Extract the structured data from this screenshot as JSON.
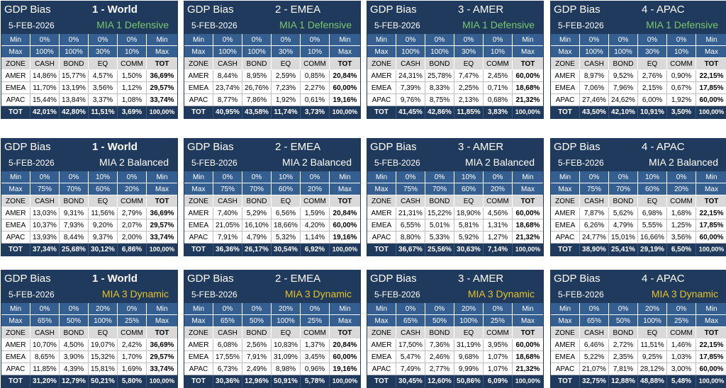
{
  "colors": {
    "navy": "#1f3a5c",
    "limits": "#365f91",
    "green": "#7bc86c",
    "gold": "#e6c229"
  },
  "panels": [
    {
      "bias": "GDP Bias",
      "region": "1 - World",
      "date": "5-FEB-2026",
      "profile": "MIA 1 Defensive",
      "profile_color": "#7bc86c",
      "min": [
        "Min",
        "0%",
        "0%",
        "0%",
        "0%",
        "Min"
      ],
      "max": [
        "Max",
        "100%",
        "100%",
        "30%",
        "10%",
        "Max"
      ],
      "headers": [
        "ZONE",
        "CASH",
        "BOND",
        "EQ",
        "COMM",
        "TOT"
      ],
      "rows": [
        [
          "AMER",
          "14,86%",
          "15,77%",
          "4,57%",
          "1,50%",
          "36,69%"
        ],
        [
          "EMEA",
          "11,70%",
          "13,19%",
          "3,56%",
          "1,12%",
          "29,57%"
        ],
        [
          "APAC",
          "15,44%",
          "13,84%",
          "3,37%",
          "1,08%",
          "33,74%"
        ]
      ],
      "totals": [
        "TOT",
        "42,01%",
        "42,80%",
        "11,51%",
        "3,69%",
        "100,00%"
      ]
    },
    {
      "bias": "GDP Bias",
      "region": "2 - EMEA",
      "date": "5-FEB-2026",
      "profile": "MIA 1 Defensive",
      "profile_color": "#7bc86c",
      "min": [
        "Min",
        "0%",
        "0%",
        "0%",
        "0%",
        "Min"
      ],
      "max": [
        "Max",
        "100%",
        "100%",
        "30%",
        "10%",
        "Max"
      ],
      "headers": [
        "ZONE",
        "CASH",
        "BOND",
        "EQ",
        "COMM",
        "TOT"
      ],
      "rows": [
        [
          "AMER",
          "8,44%",
          "8,95%",
          "2,59%",
          "0,85%",
          "20,84%"
        ],
        [
          "EMEA",
          "23,74%",
          "26,76%",
          "7,23%",
          "2,27%",
          "60,00%"
        ],
        [
          "APAC",
          "8,77%",
          "7,86%",
          "1,92%",
          "0,61%",
          "19,16%"
        ]
      ],
      "totals": [
        "TOT",
        "40,95%",
        "43,58%",
        "11,74%",
        "3,73%",
        "100,00%"
      ]
    },
    {
      "bias": "GDP Bias",
      "region": "3 - AMER",
      "date": "5-FEB-2026",
      "profile": "MIA 1 Defensive",
      "profile_color": "#7bc86c",
      "min": [
        "Min",
        "0%",
        "0%",
        "0%",
        "0%",
        "Min"
      ],
      "max": [
        "Max",
        "100%",
        "100%",
        "30%",
        "10%",
        "Max"
      ],
      "headers": [
        "ZONE",
        "CASH",
        "BOND",
        "EQ",
        "COMM",
        "TOT"
      ],
      "rows": [
        [
          "AMER",
          "24,31%",
          "25,78%",
          "7,47%",
          "2,45%",
          "60,00%"
        ],
        [
          "EMEA",
          "7,39%",
          "8,33%",
          "2,25%",
          "0,71%",
          "18,68%"
        ],
        [
          "APAC",
          "9,76%",
          "8,75%",
          "2,13%",
          "0,68%",
          "21,32%"
        ]
      ],
      "totals": [
        "TOT",
        "41,45%",
        "42,86%",
        "11,85%",
        "3,83%",
        "100,00%"
      ]
    },
    {
      "bias": "GDP Bias",
      "region": "4 - APAC",
      "date": "5-FEB-2026",
      "profile": "MIA 1 Defensive",
      "profile_color": "#7bc86c",
      "min": [
        "Min",
        "0%",
        "0%",
        "0%",
        "0%",
        "Min"
      ],
      "max": [
        "Max",
        "100%",
        "100%",
        "30%",
        "10%",
        "Max"
      ],
      "headers": [
        "ZONE",
        "CASH",
        "BOND",
        "EQ",
        "COMM",
        "TOT"
      ],
      "rows": [
        [
          "AMER",
          "8,97%",
          "9,52%",
          "2,76%",
          "0,90%",
          "22,15%"
        ],
        [
          "EMEA",
          "7,06%",
          "7,96%",
          "2,15%",
          "0,67%",
          "17,85%"
        ],
        [
          "APAC",
          "27,46%",
          "24,62%",
          "6,00%",
          "1,92%",
          "60,00%"
        ]
      ],
      "totals": [
        "TOT",
        "43,50%",
        "42,10%",
        "10,91%",
        "3,50%",
        "100,00%"
      ]
    },
    {
      "bias": "GDP Bias",
      "region": "1 - World",
      "date": "5-FEB-2026",
      "profile": "MIA 2 Balanced",
      "profile_color": "#ffffff",
      "min": [
        "Min",
        "0%",
        "0%",
        "10%",
        "0%",
        "Min"
      ],
      "max": [
        "Max",
        "75%",
        "70%",
        "60%",
        "20%",
        "Max"
      ],
      "headers": [
        "ZONE",
        "CASH",
        "BOND",
        "EQ",
        "COMM",
        "TOT"
      ],
      "rows": [
        [
          "AMER",
          "13,03%",
          "9,31%",
          "11,56%",
          "2,79%",
          "36,69%"
        ],
        [
          "EMEA",
          "10,37%",
          "7,93%",
          "9,20%",
          "2,07%",
          "29,57%"
        ],
        [
          "APAC",
          "13,93%",
          "8,44%",
          "9,37%",
          "2,00%",
          "33,74%"
        ]
      ],
      "totals": [
        "TOT",
        "37,34%",
        "25,68%",
        "30,12%",
        "6,86%",
        "100,00%"
      ]
    },
    {
      "bias": "GDP Bias",
      "region": "2 - EMEA",
      "date": "5-FEB-2026",
      "profile": "MIA 2 Balanced",
      "profile_color": "#ffffff",
      "min": [
        "Min",
        "0%",
        "0%",
        "10%",
        "0%",
        "Min"
      ],
      "max": [
        "Max",
        "75%",
        "70%",
        "60%",
        "20%",
        "Max"
      ],
      "headers": [
        "ZONE",
        "CASH",
        "BOND",
        "EQ",
        "COMM",
        "TOT"
      ],
      "rows": [
        [
          "AMER",
          "7,40%",
          "5,29%",
          "6,56%",
          "1,59%",
          "20,84%"
        ],
        [
          "EMEA",
          "21,05%",
          "16,10%",
          "18,66%",
          "4,20%",
          "60,00%"
        ],
        [
          "APAC",
          "7,91%",
          "4,79%",
          "5,32%",
          "1,14%",
          "19,16%"
        ]
      ],
      "totals": [
        "TOT",
        "36,36%",
        "26,17%",
        "30,54%",
        "6,92%",
        "100,00%"
      ]
    },
    {
      "bias": "GDP Bias",
      "region": "3 - AMER",
      "date": "5-FEB-2026",
      "profile": "MIA 2 Balanced",
      "profile_color": "#ffffff",
      "min": [
        "Min",
        "0%",
        "0%",
        "10%",
        "0%",
        "Min"
      ],
      "max": [
        "Max",
        "75%",
        "70%",
        "60%",
        "20%",
        "Max"
      ],
      "headers": [
        "ZONE",
        "CASH",
        "BOND",
        "EQ",
        "COMM",
        "TOT"
      ],
      "rows": [
        [
          "AMER",
          "21,31%",
          "15,22%",
          "18,90%",
          "4,56%",
          "60,00%"
        ],
        [
          "EMEA",
          "6,55%",
          "5,01%",
          "5,81%",
          "1,31%",
          "18,68%"
        ],
        [
          "APAC",
          "8,80%",
          "5,33%",
          "5,92%",
          "1,27%",
          "21,32%"
        ]
      ],
      "totals": [
        "TOT",
        "36,67%",
        "25,56%",
        "30,63%",
        "7,14%",
        "100,00%"
      ]
    },
    {
      "bias": "GDP Bias",
      "region": "4 - APAC",
      "date": "5-FEB-2026",
      "profile": "MIA 2 Balanced",
      "profile_color": "#ffffff",
      "min": [
        "Min",
        "0%",
        "0%",
        "10%",
        "0%",
        "Min"
      ],
      "max": [
        "Max",
        "75%",
        "70%",
        "60%",
        "20%",
        "Max"
      ],
      "headers": [
        "ZONE",
        "CASH",
        "BOND",
        "EQ",
        "COMM",
        "TOT"
      ],
      "rows": [
        [
          "AMER",
          "7,87%",
          "5,62%",
          "6,98%",
          "1,68%",
          "22,15%"
        ],
        [
          "EMEA",
          "6,26%",
          "4,79%",
          "5,55%",
          "1,25%",
          "17,85%"
        ],
        [
          "APAC",
          "24,77%",
          "15,01%",
          "16,66%",
          "3,56%",
          "60,00%"
        ]
      ],
      "totals": [
        "TOT",
        "38,90%",
        "25,41%",
        "29,19%",
        "6,50%",
        "100,00%"
      ]
    },
    {
      "bias": "GDP Bias",
      "region": "1 - World",
      "date": "5-FEB-2026",
      "profile": "MIA 3 Dynamic",
      "profile_color": "#e6c229",
      "min": [
        "Min",
        "0%",
        "0%",
        "20%",
        "0%",
        "Min"
      ],
      "max": [
        "Max",
        "65%",
        "50%",
        "100%",
        "25%",
        "Max"
      ],
      "headers": [
        "ZONE",
        "CASH",
        "BOND",
        "EQ",
        "COMM",
        "TOT"
      ],
      "rows": [
        [
          "AMER",
          "10,70%",
          "4,50%",
          "19,07%",
          "2,42%",
          "36,69%"
        ],
        [
          "EMEA",
          "8,65%",
          "3,90%",
          "15,32%",
          "1,70%",
          "29,57%"
        ],
        [
          "APAC",
          "11,85%",
          "4,39%",
          "15,81%",
          "1,69%",
          "33,74%"
        ]
      ],
      "totals": [
        "TOT",
        "31,20%",
        "12,79%",
        "50,21%",
        "5,80%",
        "100,00%"
      ]
    },
    {
      "bias": "GDP Bias",
      "region": "2 - EMEA",
      "date": "5-FEB-2026",
      "profile": "MIA 3 Dynamic",
      "profile_color": "#e6c229",
      "min": [
        "Min",
        "0%",
        "0%",
        "20%",
        "0%",
        "Min"
      ],
      "max": [
        "Max",
        "65%",
        "50%",
        "100%",
        "25%",
        "Max"
      ],
      "headers": [
        "ZONE",
        "CASH",
        "BOND",
        "EQ",
        "COMM",
        "TOT"
      ],
      "rows": [
        [
          "AMER",
          "6,08%",
          "2,56%",
          "10,83%",
          "1,37%",
          "20,84%"
        ],
        [
          "EMEA",
          "17,55%",
          "7,91%",
          "31,09%",
          "3,45%",
          "60,00%"
        ],
        [
          "APAC",
          "6,73%",
          "2,49%",
          "8,98%",
          "0,96%",
          "19,16%"
        ]
      ],
      "totals": [
        "TOT",
        "30,36%",
        "12,96%",
        "50,91%",
        "5,78%",
        "100,00%"
      ]
    },
    {
      "bias": "GDP Bias",
      "region": "3 - AMER",
      "date": "5-FEB-2026",
      "profile": "MIA 3 Dynamic",
      "profile_color": "#e6c229",
      "min": [
        "Min",
        "0%",
        "0%",
        "20%",
        "0%",
        "Min"
      ],
      "max": [
        "Max",
        "65%",
        "50%",
        "100%",
        "25%",
        "Max"
      ],
      "headers": [
        "ZONE",
        "CASH",
        "BOND",
        "EQ",
        "COMM",
        "TOT"
      ],
      "rows": [
        [
          "AMER",
          "17,50%",
          "7,36%",
          "31,19%",
          "3,95%",
          "60,00%"
        ],
        [
          "EMEA",
          "5,47%",
          "2,46%",
          "9,68%",
          "1,07%",
          "18,68%"
        ],
        [
          "APAC",
          "7,49%",
          "2,77%",
          "9,99%",
          "1,07%",
          "21,32%"
        ]
      ],
      "totals": [
        "TOT",
        "30,45%",
        "12,60%",
        "50,86%",
        "6,09%",
        "100,00%"
      ]
    },
    {
      "bias": "GDP Bias",
      "region": "4 - APAC",
      "date": "5-FEB-2026",
      "profile": "MIA 3 Dynamic",
      "profile_color": "#e6c229",
      "min": [
        "Min",
        "0%",
        "0%",
        "20%",
        "0%",
        "Min"
      ],
      "max": [
        "Max",
        "65%",
        "50%",
        "100%",
        "25%",
        "Max"
      ],
      "headers": [
        "ZONE",
        "CASH",
        "BOND",
        "EQ",
        "COMM",
        "TOT"
      ],
      "rows": [
        [
          "AMER",
          "6,46%",
          "2,72%",
          "11,51%",
          "1,46%",
          "22,15%"
        ],
        [
          "EMEA",
          "5,22%",
          "2,35%",
          "9,25%",
          "1,03%",
          "17,85%"
        ],
        [
          "APAC",
          "21,07%",
          "7,81%",
          "28,12%",
          "3,00%",
          "60,00%"
        ]
      ],
      "totals": [
        "TOT",
        "32,75%",
        "12,88%",
        "48,88%",
        "5,48%",
        "100,00%"
      ]
    }
  ]
}
